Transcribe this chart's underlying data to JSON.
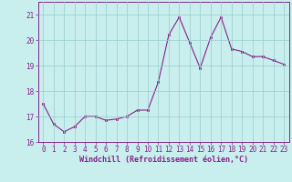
{
  "x": [
    0,
    1,
    2,
    3,
    4,
    5,
    6,
    7,
    8,
    9,
    10,
    11,
    12,
    13,
    14,
    15,
    16,
    17,
    18,
    19,
    20,
    21,
    22,
    23
  ],
  "y": [
    17.5,
    16.7,
    16.4,
    16.6,
    17.0,
    17.0,
    16.85,
    16.9,
    17.0,
    17.25,
    17.25,
    18.35,
    20.2,
    20.9,
    19.9,
    18.9,
    20.1,
    20.9,
    19.65,
    19.55,
    19.35,
    19.35,
    19.2,
    19.05
  ],
  "line_color": "#882288",
  "marker_color": "#882288",
  "bg_color": "#c8eeed",
  "grid_color": "#99cccc",
  "xlabel": "Windchill (Refroidissement éolien,°C)",
  "ylim": [
    16,
    21.5
  ],
  "xlim_min": -0.5,
  "xlim_max": 23.5,
  "yticks": [
    16,
    17,
    18,
    19,
    20,
    21
  ],
  "xticks": [
    0,
    1,
    2,
    3,
    4,
    5,
    6,
    7,
    8,
    9,
    10,
    11,
    12,
    13,
    14,
    15,
    16,
    17,
    18,
    19,
    20,
    21,
    22,
    23
  ],
  "tick_fontsize": 5.5,
  "label_fontsize": 6.0
}
